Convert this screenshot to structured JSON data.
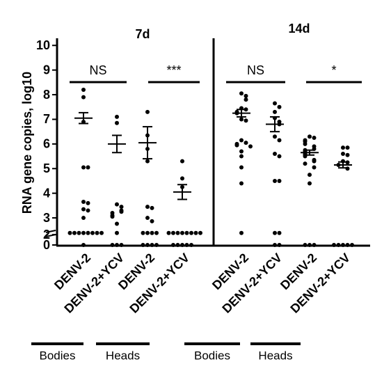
{
  "chart_data": {
    "type": "strip",
    "y_label": "RNA gene copies, log10",
    "ylim": [
      0,
      10
    ],
    "yticks": [
      0,
      2,
      3,
      4,
      5,
      6,
      7,
      8,
      9,
      10
    ],
    "y_break": true,
    "color": "#000000",
    "panels": [
      {
        "title": "7d",
        "categories": [
          "DENV-2",
          "DENV-2+YCV",
          "DENV-2",
          "DENV-2+YCV"
        ],
        "groups": [
          "Bodies",
          "Heads"
        ],
        "annotations": [
          "NS",
          "***"
        ],
        "values": [
          [
            8.2,
            7.9,
            6.9,
            5.05,
            5.05,
            3.65,
            3.6,
            3.35,
            3.3,
            3.0,
            2.1,
            2.1,
            2.1,
            2.1,
            2.1,
            2.1,
            2.1,
            2.1,
            0
          ],
          [
            7.1,
            6.85,
            3.55,
            3.45,
            3.3,
            3.25,
            3.2,
            3.1,
            3.05,
            2.65,
            2.1,
            0,
            0,
            0
          ],
          [
            7.3,
            6.35,
            5.8,
            5.3,
            3.45,
            3.4,
            3.0,
            2.8,
            2.1,
            2.1,
            2.1,
            2.1,
            0,
            0,
            0,
            0
          ],
          [
            5.3,
            4.6,
            4.25,
            2.1,
            2.1,
            2.1,
            2.1,
            2.1,
            2.1,
            2.1,
            2.1,
            0,
            0,
            0,
            0,
            0
          ]
        ],
        "means": [
          7.05,
          6.0,
          6.05,
          4.05
        ],
        "errors": [
          0.22,
          0.35,
          0.65,
          0.3
        ]
      },
      {
        "title": "14d",
        "categories": [
          "DENV-2",
          "DENV-2+YCV",
          "DENV-2",
          "DENV-2+YCV"
        ],
        "groups": [
          "Bodies",
          "Heads"
        ],
        "annotations": [
          "NS",
          "*"
        ],
        "values": [
          [
            8.05,
            7.95,
            7.8,
            7.45,
            7.4,
            7.3,
            7.25,
            7.0,
            6.95,
            6.15,
            6.05,
            6.0,
            5.95,
            5.9,
            5.7,
            5.5,
            5.05,
            4.4,
            2.1
          ],
          [
            7.65,
            7.5,
            7.3,
            7.05,
            6.9,
            6.8,
            6.3,
            6.15,
            5.6,
            5.5,
            4.5,
            4.5,
            2.1,
            2.1,
            0,
            0
          ],
          [
            6.3,
            6.25,
            6.15,
            6.1,
            6.0,
            5.9,
            5.8,
            5.75,
            5.7,
            5.6,
            5.55,
            5.5,
            5.35,
            5.3,
            5.2,
            5.05,
            4.75,
            4.4,
            0,
            0,
            0
          ],
          [
            5.85,
            5.85,
            5.6,
            5.55,
            5.3,
            5.25,
            5.15,
            5.0,
            0,
            0,
            0,
            0,
            0
          ]
        ],
        "means": [
          7.25,
          6.8,
          5.65,
          5.15
        ],
        "errors": [
          0.15,
          0.3,
          0.1,
          0.12
        ]
      }
    ]
  }
}
